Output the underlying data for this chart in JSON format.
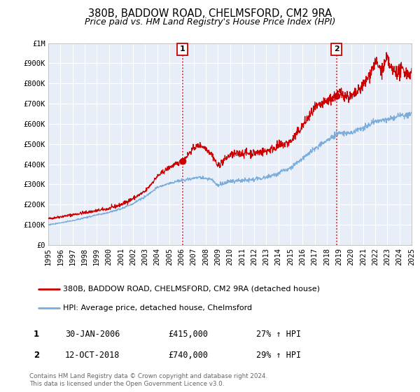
{
  "title": "380B, BADDOW ROAD, CHELMSFORD, CM2 9RA",
  "subtitle": "Price paid vs. HM Land Registry's House Price Index (HPI)",
  "xlim": [
    1995,
    2025
  ],
  "ylim": [
    0,
    1000000
  ],
  "yticks": [
    0,
    100000,
    200000,
    300000,
    400000,
    500000,
    600000,
    700000,
    800000,
    900000,
    1000000
  ],
  "ytick_labels": [
    "£0",
    "£100K",
    "£200K",
    "£300K",
    "£400K",
    "£500K",
    "£600K",
    "£700K",
    "£800K",
    "£900K",
    "£1M"
  ],
  "xticks": [
    1995,
    1996,
    1997,
    1998,
    1999,
    2000,
    2001,
    2002,
    2003,
    2004,
    2005,
    2006,
    2007,
    2008,
    2009,
    2010,
    2011,
    2012,
    2013,
    2014,
    2015,
    2016,
    2017,
    2018,
    2019,
    2020,
    2021,
    2022,
    2023,
    2024,
    2025
  ],
  "house_color": "#cc0000",
  "hpi_color": "#7aaddb",
  "marker1_x": 2006.08,
  "marker1_y": 415000,
  "marker2_x": 2018.79,
  "marker2_y": 740000,
  "vline1_x": 2006.08,
  "vline2_x": 2018.79,
  "legend_house": "380B, BADDOW ROAD, CHELMSFORD, CM2 9RA (detached house)",
  "legend_hpi": "HPI: Average price, detached house, Chelmsford",
  "annotation1_date": "30-JAN-2006",
  "annotation1_price": "£415,000",
  "annotation1_hpi": "27% ↑ HPI",
  "annotation2_date": "12-OCT-2018",
  "annotation2_price": "£740,000",
  "annotation2_hpi": "29% ↑ HPI",
  "footer": "Contains HM Land Registry data © Crown copyright and database right 2024.\nThis data is licensed under the Open Government Licence v3.0.",
  "bg_color": "#e8eef8",
  "plot_bg": "#ffffff",
  "grid_color": "#ffffff"
}
